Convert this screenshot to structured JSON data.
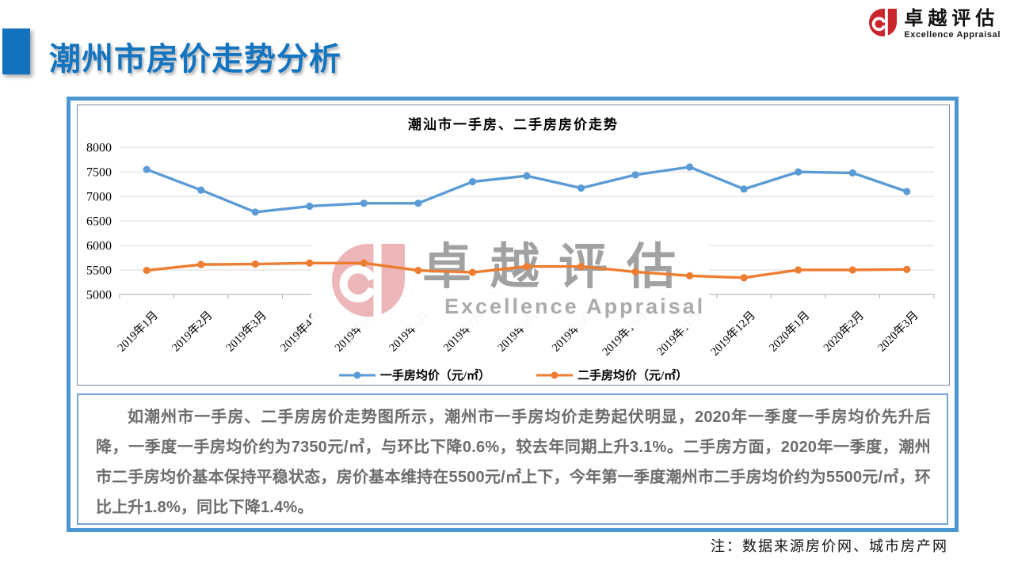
{
  "header": {
    "title": "潮州市房价走势分析",
    "logo": {
      "name": "卓越评估",
      "subtitle": "Excellence Appraisal",
      "color": "#C9252C"
    }
  },
  "watermark": {
    "name": "卓越评估",
    "subtitle": "Excellence Appraisal"
  },
  "chart_data": {
    "type": "line",
    "title": "潮汕市一手房、二手房房价走势",
    "categories": [
      "2019年1月",
      "2019年2月",
      "2019年3月",
      "2019年4月",
      "2019年5月",
      "2019年6月",
      "2019年7月",
      "2019年8月",
      "2019年9月",
      "2019年10月",
      "2019年11月",
      "2019年12月",
      "2020年1月",
      "2020年2月",
      "2020年3月"
    ],
    "series": [
      {
        "name": "一手房均价（元/㎡）",
        "color": "#5B9BD5",
        "values": [
          7550,
          7130,
          6680,
          6800,
          6860,
          6860,
          7300,
          7420,
          7170,
          7440,
          7600,
          7150,
          7500,
          7480,
          7100
        ]
      },
      {
        "name": "二手房均价（元/㎡）",
        "color": "#ED7D31",
        "values": [
          5490,
          5610,
          5620,
          5640,
          5640,
          5490,
          5450,
          5570,
          5570,
          5460,
          5380,
          5340,
          5500,
          5500,
          5510
        ]
      }
    ],
    "ylim": [
      5000,
      8000
    ],
    "ytick_step": 500,
    "grid": true,
    "legend_position": "bottom",
    "grid_color": "#D9D9D9",
    "axis_color": "#ABABAB"
  },
  "analysis": {
    "text": "如潮州市一手房、二手房房价走势图所示，潮州市一手房均价走势起伏明显，2020年一季度一手房均价先升后降，一季度一手房均价约为7350元/㎡，与环比下降0.6%，较去年同期上升3.1%。二手房方面，2020年一季度，潮州市二手房均价基本保持平稳状态，房价基本维持在5500元/㎡上下，今年第一季度潮州市二手房均价约为5500元/㎡，环比上升1.8%，同比下降1.4%。"
  },
  "footnote": {
    "text": "注：数据来源房价网、城市房产网"
  }
}
